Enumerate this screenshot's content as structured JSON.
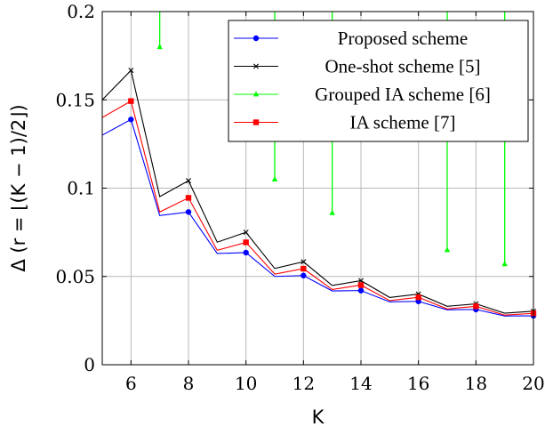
{
  "chart_data": {
    "type": "line",
    "title": "",
    "xlabel": "K",
    "ylabel": "Δ (r = ⌊(K − 1)/2⌋)",
    "xlim": [
      5,
      20
    ],
    "ylim": [
      0,
      0.2
    ],
    "xticks": [
      6,
      8,
      10,
      12,
      14,
      16,
      18,
      20
    ],
    "xtick_labels": [
      "6",
      "8",
      "10",
      "12",
      "14",
      "16",
      "18",
      "20"
    ],
    "yticks": [
      0,
      0.05,
      0.1,
      0.15,
      0.2
    ],
    "ytick_labels": [
      "0",
      "0.05",
      "0.1",
      "0.15",
      "0.2"
    ],
    "grid": true,
    "legend_position": "top-right",
    "series": [
      {
        "name": "Proposed scheme",
        "color": "#0000ff",
        "marker": "circle",
        "marker_every": "even",
        "x": [
          5,
          6,
          7,
          8,
          9,
          10,
          11,
          12,
          13,
          14,
          15,
          16,
          17,
          18,
          19,
          20
        ],
        "values": [
          0.13,
          0.1389,
          0.0845,
          0.0865,
          0.063,
          0.0635,
          0.05,
          0.0505,
          0.0418,
          0.042,
          0.0356,
          0.0359,
          0.0311,
          0.0313,
          0.0276,
          0.0277
        ]
      },
      {
        "name": "One-shot scheme [5]",
        "color": "#000000",
        "marker": "x",
        "marker_every": "even",
        "x": [
          5,
          6,
          7,
          8,
          9,
          10,
          11,
          12,
          13,
          14,
          15,
          16,
          17,
          18,
          19,
          20
        ],
        "values": [
          0.15,
          0.1667,
          0.0952,
          0.1042,
          0.0694,
          0.075,
          0.0545,
          0.0583,
          0.0449,
          0.0476,
          0.0381,
          0.04,
          0.0331,
          0.0345,
          0.0292,
          0.0303
        ]
      },
      {
        "name": "Grouped IA scheme [6]",
        "color": "#00ff00",
        "marker": "triangle",
        "marker_every": "even",
        "x": [
          5,
          6,
          7,
          8,
          9,
          10,
          11,
          12,
          13,
          14,
          15,
          16,
          17,
          18,
          19,
          20
        ],
        "values": [
          null,
          null,
          0.18,
          null,
          null,
          null,
          0.105,
          null,
          0.086,
          null,
          null,
          null,
          0.065,
          null,
          0.057,
          null
        ]
      },
      {
        "name": "IA scheme [7]",
        "color": "#ff0000",
        "marker": "square",
        "marker_every": "even",
        "x": [
          5,
          6,
          7,
          8,
          9,
          10,
          11,
          12,
          13,
          14,
          15,
          16,
          17,
          18,
          19,
          20
        ],
        "values": [
          0.14,
          0.1493,
          0.0865,
          0.0945,
          0.0648,
          0.0693,
          0.0513,
          0.0544,
          0.0426,
          0.0451,
          0.0363,
          0.0382,
          0.0316,
          0.0331,
          0.0281,
          0.0291
        ]
      }
    ]
  }
}
